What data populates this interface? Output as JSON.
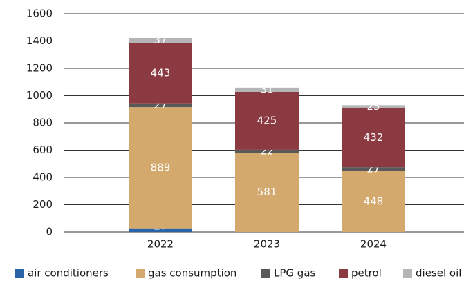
{
  "chart_data": {
    "type": "stacked_bar",
    "categories": [
      "2022",
      "2023",
      "2024"
    ],
    "series": [
      {
        "name": "air conditioners",
        "color": "#2a64a8",
        "values": [
          27,
          0,
          0
        ]
      },
      {
        "name": "gas consumption",
        "color": "#d3a96e",
        "values": [
          889,
          581,
          448
        ]
      },
      {
        "name": "LPG gas",
        "color": "#595959",
        "values": [
          27,
          22,
          27
        ]
      },
      {
        "name": "petrol",
        "color": "#8b3a41",
        "values": [
          443,
          425,
          432
        ]
      },
      {
        "name": "diesel oil",
        "color": "#b5b5b5",
        "values": [
          37,
          31,
          23
        ]
      }
    ],
    "ylim": [
      0,
      1600
    ],
    "yticks": [
      0,
      200,
      400,
      600,
      800,
      1000,
      1200,
      1400,
      1600
    ],
    "grid": true,
    "legend": "bottom"
  }
}
